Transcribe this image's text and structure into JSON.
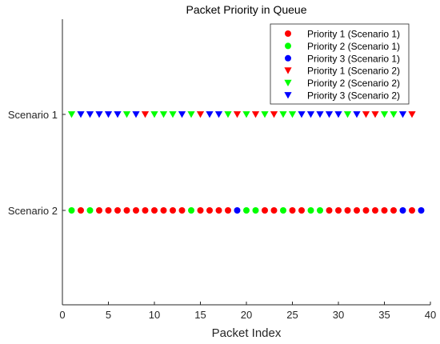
{
  "chart_data": {
    "type": "scatter",
    "title": "Packet Priority in Queue",
    "xlabel": "Packet Index",
    "ylabel": "",
    "xlim": [
      0,
      40
    ],
    "xticks": [
      0,
      5,
      10,
      15,
      20,
      25,
      30,
      35,
      40
    ],
    "y_categories": [
      "Scenario 1",
      "Scenario 2"
    ],
    "grid": false,
    "legend_position": "top-right",
    "colors": {
      "priority1": "#ff0000",
      "priority2": "#00ff00",
      "priority3": "#0000ff"
    },
    "series": [
      {
        "name": "Priority 1 (Scenario 1)",
        "marker": "circle",
        "color": "#ff0000",
        "y": "Scenario 2",
        "x": [
          2,
          4,
          5,
          6,
          7,
          8,
          9,
          10,
          11,
          12,
          13,
          15,
          16,
          17,
          18,
          22,
          23,
          25,
          26,
          29,
          30,
          31,
          32,
          33,
          34,
          35,
          36,
          38
        ]
      },
      {
        "name": "Priority 2 (Scenario 1)",
        "marker": "circle",
        "color": "#00ff00",
        "y": "Scenario 2",
        "x": [
          1,
          3,
          14,
          20,
          21,
          24,
          27,
          28
        ]
      },
      {
        "name": "Priority 3 (Scenario 1)",
        "marker": "circle",
        "color": "#0000ff",
        "y": "Scenario 2",
        "x": [
          19,
          37,
          39
        ]
      },
      {
        "name": "Priority 1 (Scenario 2)",
        "marker": "triangle-down",
        "color": "#ff0000",
        "y": "Scenario 1",
        "x": [
          9,
          15,
          19,
          21,
          23,
          33,
          34,
          38
        ]
      },
      {
        "name": "Priority 2 (Scenario 2)",
        "marker": "triangle-down",
        "color": "#00ff00",
        "y": "Scenario 1",
        "x": [
          1,
          7,
          10,
          11,
          12,
          14,
          18,
          20,
          22,
          24,
          25,
          31,
          35,
          36
        ]
      },
      {
        "name": "Priority 3 (Scenario 2)",
        "marker": "triangle-down",
        "color": "#0000ff",
        "y": "Scenario 1",
        "x": [
          2,
          3,
          4,
          5,
          6,
          8,
          13,
          16,
          17,
          26,
          27,
          28,
          29,
          30,
          32,
          37
        ]
      }
    ]
  }
}
